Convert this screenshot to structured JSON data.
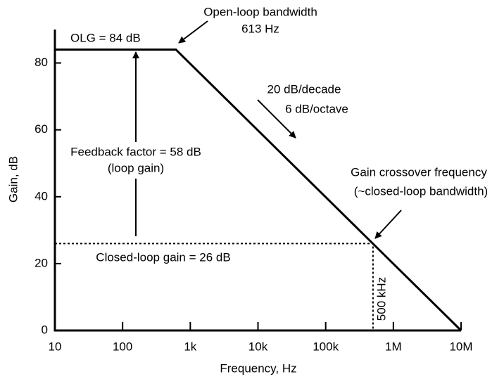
{
  "chart_data": {
    "type": "line",
    "xlabel": "Frequency, Hz",
    "ylabel": "Gain, dB",
    "xscale": "log",
    "xlim": [
      10,
      10000000
    ],
    "ylim": [
      0,
      90
    ],
    "xticks": [
      10,
      100,
      {
        "value": 1000,
        "label": "1k"
      },
      {
        "value": 10000,
        "label": "10k"
      },
      {
        "value": 100000,
        "label": "100k"
      },
      {
        "value": 1000000,
        "label": "1M"
      },
      {
        "value": 10000000,
        "label": "10M"
      }
    ],
    "yticks": [
      0,
      20,
      40,
      60,
      80
    ],
    "series": [
      {
        "x": [
          10,
          613,
          10000000
        ],
        "values": [
          84,
          84,
          0
        ],
        "color": "#000000",
        "dashed": false
      },
      {
        "x": [
          10,
          500000,
          500000
        ],
        "values": [
          26,
          26,
          0
        ],
        "color": "#000000",
        "dashed": true
      }
    ],
    "annotations": [
      "OLG = 84 dB",
      "Open-loop bandwidth",
      "613 Hz",
      "20 dB/decade",
      "6 dB/octave",
      "Feedback factor = 58 dB",
      "(loop gain)",
      "Gain crossover frequency",
      "(~closed-loop bandwidth)",
      "Closed-loop gain = 26 dB",
      "500 kHz"
    ]
  }
}
